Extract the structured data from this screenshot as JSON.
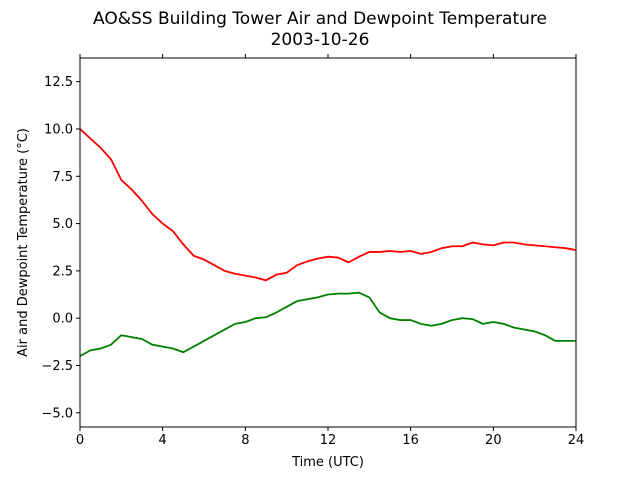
{
  "chart_data": {
    "type": "line",
    "title": "AO&SS Building Tower Air and Dewpoint Temperature",
    "subtitle": "2003-10-26",
    "xlabel": "Time (UTC)",
    "ylabel": "Air and Dewpoint Temperature (°C)",
    "xlim": [
      0,
      24
    ],
    "ylim": [
      -5.75,
      13.75
    ],
    "xticks": [
      0,
      4,
      8,
      12,
      16,
      20,
      24
    ],
    "yticks": [
      -5.0,
      -2.5,
      0.0,
      2.5,
      5.0,
      7.5,
      10.0,
      12.5
    ],
    "ytick_labels": [
      "−5.0",
      "−2.5",
      "0.0",
      "2.5",
      "5.0",
      "7.5",
      "10.0",
      "12.5"
    ],
    "grid": false,
    "series": [
      {
        "color": "#ff0000",
        "x": [
          0,
          0.5,
          1,
          1.5,
          2,
          2.5,
          3,
          3.5,
          4,
          4.5,
          5,
          5.5,
          6,
          6.5,
          7,
          7.5,
          8,
          8.5,
          9,
          9.5,
          10,
          10.5,
          11,
          11.5,
          12,
          12.5,
          13,
          13.5,
          14,
          14.5,
          15,
          15.5,
          16,
          16.5,
          17,
          17.5,
          18,
          18.5,
          19,
          19.5,
          20,
          20.5,
          21,
          21.5,
          22,
          22.5,
          23,
          23.5,
          24
        ],
        "y": [
          10.0,
          9.5,
          9.0,
          8.4,
          7.3,
          6.8,
          6.2,
          5.5,
          5.0,
          4.6,
          3.9,
          3.3,
          3.1,
          2.8,
          2.5,
          2.35,
          2.25,
          2.15,
          2.0,
          2.3,
          2.4,
          2.8,
          3.0,
          3.15,
          3.25,
          3.2,
          2.95,
          3.25,
          3.5,
          3.5,
          3.55,
          3.5,
          3.55,
          3.4,
          3.5,
          3.7,
          3.8,
          3.8,
          4.0,
          3.9,
          3.85,
          4.0,
          4.0,
          3.9,
          3.85,
          3.8,
          3.75,
          3.7,
          3.6
        ]
      },
      {
        "color": "#008000",
        "x": [
          0,
          0.5,
          1,
          1.5,
          2,
          2.5,
          3,
          3.5,
          4,
          4.5,
          5,
          5.5,
          6,
          6.5,
          7,
          7.5,
          8,
          8.5,
          9,
          9.5,
          10,
          10.5,
          11,
          11.5,
          12,
          12.5,
          13,
          13.5,
          14,
          14.5,
          15,
          15.5,
          16,
          16.5,
          17,
          17.5,
          18,
          18.5,
          19,
          19.5,
          20,
          20.5,
          21,
          21.5,
          22,
          22.5,
          23,
          23.5,
          24
        ],
        "y": [
          -2.0,
          -1.7,
          -1.6,
          -1.4,
          -0.9,
          -1.0,
          -1.1,
          -1.4,
          -1.5,
          -1.6,
          -1.8,
          -1.5,
          -1.2,
          -0.9,
          -0.6,
          -0.3,
          -0.2,
          0.0,
          0.05,
          0.3,
          0.6,
          0.9,
          1.0,
          1.1,
          1.25,
          1.3,
          1.3,
          1.35,
          1.1,
          0.3,
          0.0,
          -0.1,
          -0.1,
          -0.3,
          -0.4,
          -0.3,
          -0.1,
          0.0,
          -0.05,
          -0.3,
          -0.2,
          -0.3,
          -0.5,
          -0.6,
          -0.7,
          -0.9,
          -1.2,
          -1.2,
          -1.2
        ]
      }
    ]
  }
}
